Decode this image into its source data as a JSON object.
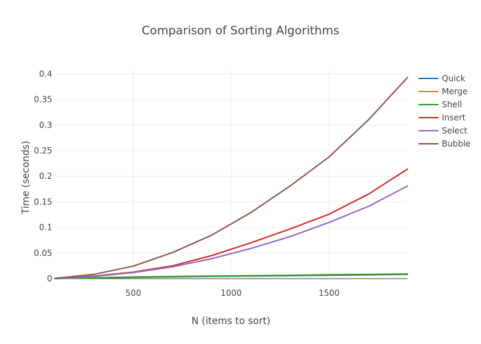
{
  "chart_data": {
    "type": "line",
    "title": "Comparison of Sorting Algorithms",
    "xlabel": "N (items to sort)",
    "ylabel": "Time (seconds)",
    "xlim": [
      100,
      1900
    ],
    "ylim": [
      0,
      0.41
    ],
    "xticks": [
      500,
      1000,
      1500
    ],
    "xtick_labels": [
      "500",
      "1000",
      "1500"
    ],
    "yticks": [
      0,
      0.05,
      0.1,
      0.15,
      0.2,
      0.25,
      0.3,
      0.35,
      0.4
    ],
    "ytick_labels": [
      "0",
      "0.05",
      "0.1",
      "0.15",
      "0.2",
      "0.25",
      "0.3",
      "0.35",
      "0.4"
    ],
    "grid": true,
    "legend_position": "right",
    "x": [
      100,
      300,
      500,
      700,
      900,
      1100,
      1300,
      1500,
      1700,
      1900
    ],
    "series": [
      {
        "name": "Quick",
        "color": "#1f77b4",
        "values": [
          0.0002,
          0.0015,
          0.0025,
          0.0035,
          0.0043,
          0.005,
          0.0057,
          0.0065,
          0.0073,
          0.0082
        ]
      },
      {
        "name": "Merge",
        "color": "#ff7f0e",
        "values": [
          0.0003,
          0.0017,
          0.003,
          0.004,
          0.0048,
          0.0056,
          0.0063,
          0.0072,
          0.008,
          0.0088
        ]
      },
      {
        "name": "Shell",
        "color": "#2ca02c",
        "values": [
          0.0003,
          0.0018,
          0.0032,
          0.0042,
          0.005,
          0.0058,
          0.0066,
          0.0076,
          0.0083,
          0.009
        ]
      },
      {
        "name": "Insert",
        "color": "#d62728",
        "values": [
          0.0005,
          0.005,
          0.0128,
          0.025,
          0.045,
          0.07,
          0.097,
          0.126,
          0.165,
          0.214
        ]
      },
      {
        "name": "Select",
        "color": "#9467bd",
        "values": [
          0.0004,
          0.0045,
          0.012,
          0.023,
          0.039,
          0.059,
          0.082,
          0.11,
          0.141,
          0.181
        ]
      },
      {
        "name": "Bubble",
        "color": "#8c564b",
        "values": [
          0.0005,
          0.0085,
          0.0245,
          0.051,
          0.085,
          0.129,
          0.181,
          0.238,
          0.31,
          0.393
        ]
      }
    ]
  }
}
